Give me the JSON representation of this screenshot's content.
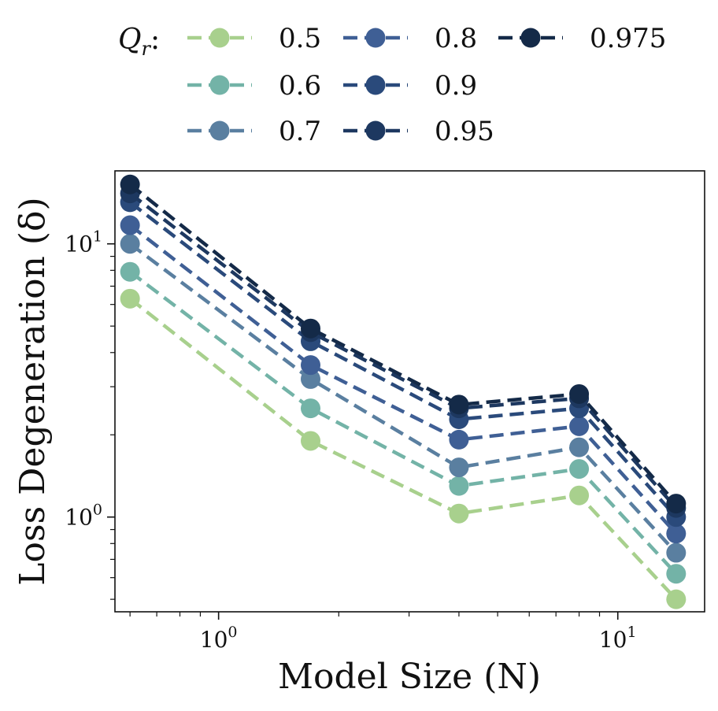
{
  "chart_data": {
    "type": "line",
    "x_scale": "log",
    "y_scale": "log",
    "x": [
      0.6,
      1.7,
      4.0,
      8.0,
      14.0
    ],
    "xlabel": "Model Size (N)",
    "ylabel": "Loss Degeneration (δ)",
    "xlim": [
      0.55,
      16.5
    ],
    "ylim": [
      0.45,
      18.5
    ],
    "x_ticks": [
      {
        "value": 1,
        "label": "10",
        "exp": "0"
      },
      {
        "value": 10,
        "label": "10",
        "exp": "1"
      }
    ],
    "y_ticks": [
      {
        "value": 1,
        "label": "10",
        "exp": "0"
      },
      {
        "value": 10,
        "label": "10",
        "exp": "1"
      }
    ],
    "grid": false,
    "legend": {
      "title_main": "Q",
      "title_sub": "r",
      "title_suffix": ":",
      "placement": "top, outside plot, 3 columns"
    },
    "series": [
      {
        "name": "0.5",
        "color": "#a8d08d",
        "values": [
          6.3,
          1.9,
          1.03,
          1.2,
          0.5
        ]
      },
      {
        "name": "0.6",
        "color": "#73b3a7",
        "values": [
          7.9,
          2.5,
          1.3,
          1.5,
          0.62
        ]
      },
      {
        "name": "0.7",
        "color": "#5a7fa0",
        "values": [
          10.0,
          3.2,
          1.52,
          1.8,
          0.74
        ]
      },
      {
        "name": "0.8",
        "color": "#3f5f95",
        "values": [
          11.7,
          3.6,
          1.92,
          2.15,
          0.87
        ]
      },
      {
        "name": "0.9",
        "color": "#2a4a7b",
        "values": [
          14.2,
          4.4,
          2.28,
          2.5,
          1.0
        ]
      },
      {
        "name": "0.95",
        "color": "#1d3860",
        "values": [
          15.3,
          4.75,
          2.5,
          2.72,
          1.08
        ]
      },
      {
        "name": "0.975",
        "color": "#142a48",
        "values": [
          16.5,
          4.9,
          2.58,
          2.82,
          1.12
        ]
      }
    ]
  }
}
